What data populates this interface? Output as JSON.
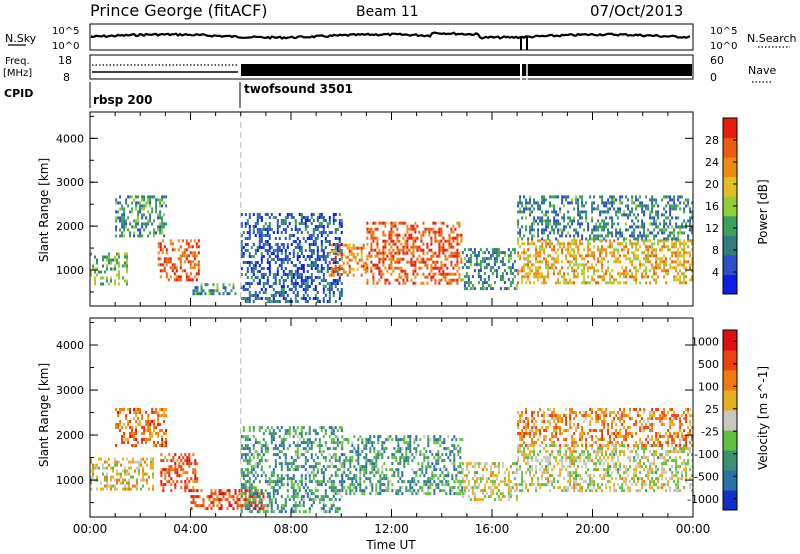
{
  "header": {
    "station": "Prince George (fitACF)",
    "beam": "Beam 11",
    "date": "07/Oct/2013"
  },
  "top_panels": {
    "nsky_label": "N.Sky",
    "nsky_ticks": [
      "10^5",
      "10^0"
    ],
    "nsearch_label": "N.Search",
    "nsearch_ticks": [
      "10^5",
      "10^0"
    ],
    "freq_label_1": "Freq.",
    "freq_label_2": "[MHz]",
    "freq_ticks": [
      "18",
      "8"
    ],
    "nave_label": "Nave",
    "nave_ticks": [
      "60",
      "0"
    ],
    "cpid_label": "CPID",
    "cpid_modes": [
      {
        "name": "rbsp 200",
        "start_hour": 0
      },
      {
        "name": "twofsound 3501",
        "start_hour": 6
      }
    ]
  },
  "chart_data": [
    {
      "type": "heatmap",
      "name": "power",
      "ylabel": "Slant Range [km]",
      "ylim": [
        180,
        4600
      ],
      "yticks": [
        "1000",
        "2000",
        "3000",
        "4000"
      ],
      "xlim": [
        0,
        24
      ],
      "xticks": [
        "00:00",
        "04:00",
        "08:00",
        "12:00",
        "16:00",
        "20:00",
        "00:00"
      ],
      "colorbar": {
        "label": "Power [dB]",
        "ticks": [
          "4",
          "8",
          "12",
          "16",
          "20",
          "24",
          "28"
        ],
        "colors": [
          "#0a1ee6",
          "#2a4fc8",
          "#2f7d7d",
          "#3aa05a",
          "#8fcf3a",
          "#e0c020",
          "#f08a10",
          "#ee5a10",
          "#e61e10"
        ]
      },
      "regions": [
        {
          "t0": 0.0,
          "t1": 1.5,
          "r0": 700,
          "r1": 1400,
          "level": 0.45
        },
        {
          "t0": 1.0,
          "t1": 3.0,
          "r0": 1800,
          "r1": 2700,
          "level": 0.35
        },
        {
          "t0": 2.7,
          "t1": 4.3,
          "r0": 800,
          "r1": 1700,
          "level": 0.85
        },
        {
          "t0": 4.0,
          "t1": 6.0,
          "r0": 450,
          "r1": 700,
          "level": 0.35
        },
        {
          "t0": 6.0,
          "t1": 10.0,
          "r0": 300,
          "r1": 2300,
          "level": 0.2
        },
        {
          "t0": 9.5,
          "t1": 11.0,
          "r0": 900,
          "r1": 1600,
          "level": 0.75
        },
        {
          "t0": 11.0,
          "t1": 14.8,
          "r0": 700,
          "r1": 2100,
          "level": 0.85
        },
        {
          "t0": 14.8,
          "t1": 17.0,
          "r0": 600,
          "r1": 1500,
          "level": 0.3
        },
        {
          "t0": 17.0,
          "t1": 24.0,
          "r0": 700,
          "r1": 1700,
          "level": 0.65
        },
        {
          "t0": 17.0,
          "t1": 24.0,
          "r0": 1700,
          "r1": 2700,
          "level": 0.3
        }
      ]
    },
    {
      "type": "heatmap",
      "name": "velocity",
      "ylabel": "Slant Range [km]",
      "xlabel": "Time UT",
      "ylim": [
        180,
        4600
      ],
      "yticks": [
        "1000",
        "2000",
        "3000",
        "4000"
      ],
      "xlim": [
        0,
        24
      ],
      "xticks": [
        "00:00",
        "04:00",
        "08:00",
        "12:00",
        "16:00",
        "20:00",
        "00:00"
      ],
      "colorbar": {
        "label": "Velocity [m s^-1]",
        "ticks": [
          "1000",
          "500",
          "100",
          "25",
          "-25",
          "-100",
          "-500",
          "-1000"
        ],
        "colors": [
          "#1030c8",
          "#2a70a8",
          "#3a9070",
          "#60c040",
          "#c8c8c0",
          "#e8b020",
          "#f07a10",
          "#ee4010",
          "#e01010"
        ]
      },
      "regions": [
        {
          "t0": 0.0,
          "t1": 2.5,
          "r0": 800,
          "r1": 1500,
          "level": 0.55
        },
        {
          "t0": 1.0,
          "t1": 3.0,
          "r0": 1800,
          "r1": 2600,
          "level": 0.75
        },
        {
          "t0": 2.8,
          "t1": 4.3,
          "r0": 800,
          "r1": 1600,
          "level": 0.8
        },
        {
          "t0": 4.0,
          "t1": 7.0,
          "r0": 400,
          "r1": 800,
          "level": 0.85
        },
        {
          "t0": 6.0,
          "t1": 10.0,
          "r0": 300,
          "r1": 2200,
          "level": 0.3
        },
        {
          "t0": 10.0,
          "t1": 14.8,
          "r0": 700,
          "r1": 2000,
          "level": 0.3
        },
        {
          "t0": 14.8,
          "t1": 17.0,
          "r0": 600,
          "r1": 1400,
          "level": 0.5
        },
        {
          "t0": 17.0,
          "t1": 24.0,
          "r0": 800,
          "r1": 1800,
          "level": 0.5
        },
        {
          "t0": 17.0,
          "t1": 24.0,
          "r0": 1800,
          "r1": 2600,
          "level": 0.7
        }
      ]
    }
  ]
}
